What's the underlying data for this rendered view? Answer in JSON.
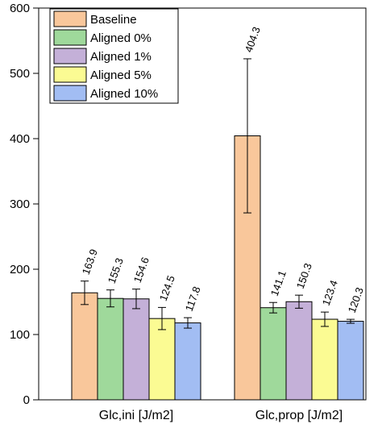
{
  "chart_data": {
    "type": "bar",
    "title": "",
    "xlabel": "",
    "ylabel": "",
    "ylim": [
      0,
      600
    ],
    "yticks": [
      0,
      100,
      200,
      300,
      400,
      500,
      600
    ],
    "categories": [
      "Glc,ini [J/m2]",
      "Glc,prop [J/m2]"
    ],
    "series": [
      {
        "name": "Baseline",
        "color": "#f9c79b",
        "values": [
          163.9,
          404.3
        ],
        "errors": [
          18,
          118
        ],
        "labels": [
          "163.9",
          "404.3"
        ]
      },
      {
        "name": "Aligned 0%",
        "color": "#9fd99b",
        "values": [
          155.3,
          141.1
        ],
        "errors": [
          13,
          8
        ],
        "labels": [
          "155.3",
          "141.1"
        ]
      },
      {
        "name": "Aligned 1%",
        "color": "#c4b0d8",
        "values": [
          154.6,
          150.3
        ],
        "errors": [
          15,
          10
        ],
        "labels": [
          "154.6",
          "150.3"
        ]
      },
      {
        "name": "Aligned 5%",
        "color": "#fbfb93",
        "values": [
          124.5,
          123.4
        ],
        "errors": [
          17,
          11
        ],
        "labels": [
          "124.5",
          "123.4"
        ]
      },
      {
        "name": "Aligned 10%",
        "color": "#a2bdf3",
        "values": [
          117.8,
          120.3
        ],
        "errors": [
          8,
          3
        ],
        "labels": [
          "117.8",
          "120.3"
        ]
      }
    ],
    "legend_position": "top-left",
    "grid": false
  }
}
